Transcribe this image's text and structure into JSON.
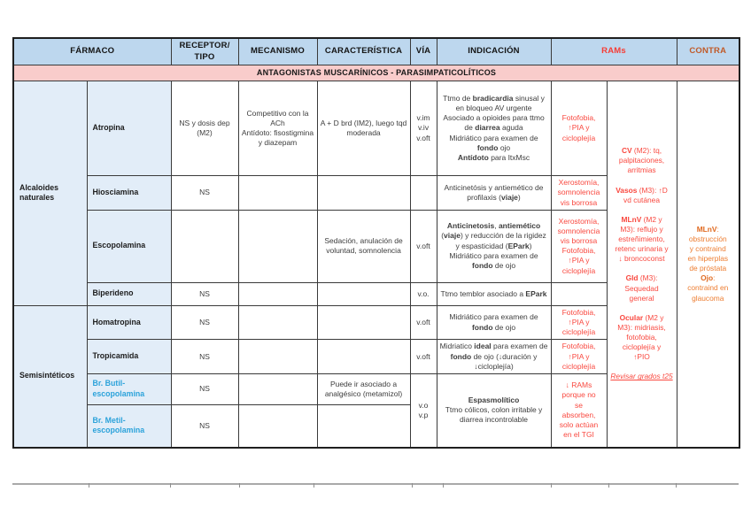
{
  "header": {
    "farmaco": "FÁRMACO",
    "receptor": "RECEPTOR/\nTIPO",
    "mecanismo": "MECANISMO",
    "caracteristica": "CARACTERÍSTICA",
    "via": "VÍA",
    "indicacion": "INDICACIÓN",
    "rams": "RAMs",
    "contra": "CONTRA"
  },
  "section_title": "ANTAGONISTAS MUSCARÍNICOS - PARASIMPATICOLÍTICOS",
  "groups": {
    "alcaloides": "Alcaloides naturales",
    "semisinteticos": "Semisintéticos"
  },
  "rows": [
    {
      "name": "Atropina",
      "receptor": "NS y dosis dep (M2)",
      "mecanismo": "Competitivo con la ACh\nAntídoto: fisostigmina y diazepam",
      "caracteristica": "A + D brd (IM2), luego tqd moderada",
      "via": "v.im\nv.iv\nv.oft",
      "indicacion": "Ttmo de **bradicardia** sinusal y en bloqueo AV urgente\nAsociado a opioides para ttmo de **diarrea** aguda\nMidriático para examen de **fondo** ojo\n**Antídoto** para ItxMsc",
      "rams": "Fotofobia,\n↑PIA y\ncicloplejía"
    },
    {
      "name": "Hiosciamina",
      "receptor": "NS",
      "mecanismo": "",
      "caracteristica": "",
      "via": "",
      "indicacion": "Anticinetósis y antiemético de profilaxis (**viaje**)",
      "rams": "Xerostomía,\nsomnolencia\nvis borrosa"
    },
    {
      "name": "Escopolamina",
      "receptor": "",
      "mecanismo": "",
      "caracteristica": "Sedación, anulación de voluntad, somnolencia",
      "via": "v.oft",
      "indicacion": "**Anticinetosis**, **antiemético** (**viaje**) y reducción de la rigidez y espasticidad (**EPark**)\nMidriático para examen de **fondo** de ojo",
      "rams": "Xerostomía,\nsomnolencia\nvis borrosa\nFotofobia,\n↑PIA y\ncicloplejía"
    },
    {
      "name": "Biperideno",
      "receptor": "NS",
      "mecanismo": "",
      "caracteristica": "",
      "via": "v.o.",
      "indicacion": "Ttmo temblor asociado a **EPark**",
      "rams": ""
    },
    {
      "name": "Homatropina",
      "receptor": "NS",
      "mecanismo": "",
      "caracteristica": "",
      "via": "v.oft",
      "indicacion": "Midriático para examen de **fondo** de ojo",
      "rams": "Fotofobia,\n↑PIA y\ncicloplejía"
    },
    {
      "name": "Tropicamida",
      "receptor": "NS",
      "mecanismo": "",
      "caracteristica": "",
      "via": "v.oft",
      "indicacion": "Midriatico **ideal** para examen de **fondo** de ojo (↓duración y ↓cicloplejía)",
      "rams": "Fotofobia,\n↑PIA y\ncicloplejía"
    },
    {
      "name": "Br. Butil-escopolamina",
      "receptor": "NS",
      "mecanismo": "",
      "caracteristica": "Puede ir asociado a analgésico (metamizol)",
      "via": "v.o\nv.p",
      "indicacion": "**Espasmolítico**\nTtmo cólicos, colon irritable y diarrea incontrolable",
      "rams": "↓ RAMs\nporque no\nse\nabsorben,\nsolo actúan\nen el TGI"
    },
    {
      "name": "Br. Metil-escopolamina",
      "receptor": "NS",
      "mecanismo": "",
      "caracteristica": ""
    }
  ],
  "rams_shared": "**CV** (M2): tq,\npalpitaciones,\narritmias\n\n**Vasos** (M3): ↑D\nvd cutánea\n\n**MLnV** (M2 y\nM3): reflujo y\nestreñimiento,\nretenc urinaria y\n↓ broncoconst\n\n**Gld** (M3):\nSequedad\ngeneral\n\n**Ocular** (M2 y\nM3): midriasis,\nfotofobia,\ncicloplejía y\n↑PIO",
  "rams_note": "Revisar grados t25",
  "contra_text": "**MLnV**:\nobstrucción\ny contraind\nen hiperplas\nde próstata\n**Ojo**:\ncontraind en\nglaucoma",
  "colors": {
    "header_bg": "#bdd7ee",
    "band_bg": "#f9cccb",
    "drug_bg": "#e2edf8",
    "rams_red": "#f9483f",
    "contra_orange": "#ed7d31",
    "blue_drug": "#2ba2da"
  }
}
